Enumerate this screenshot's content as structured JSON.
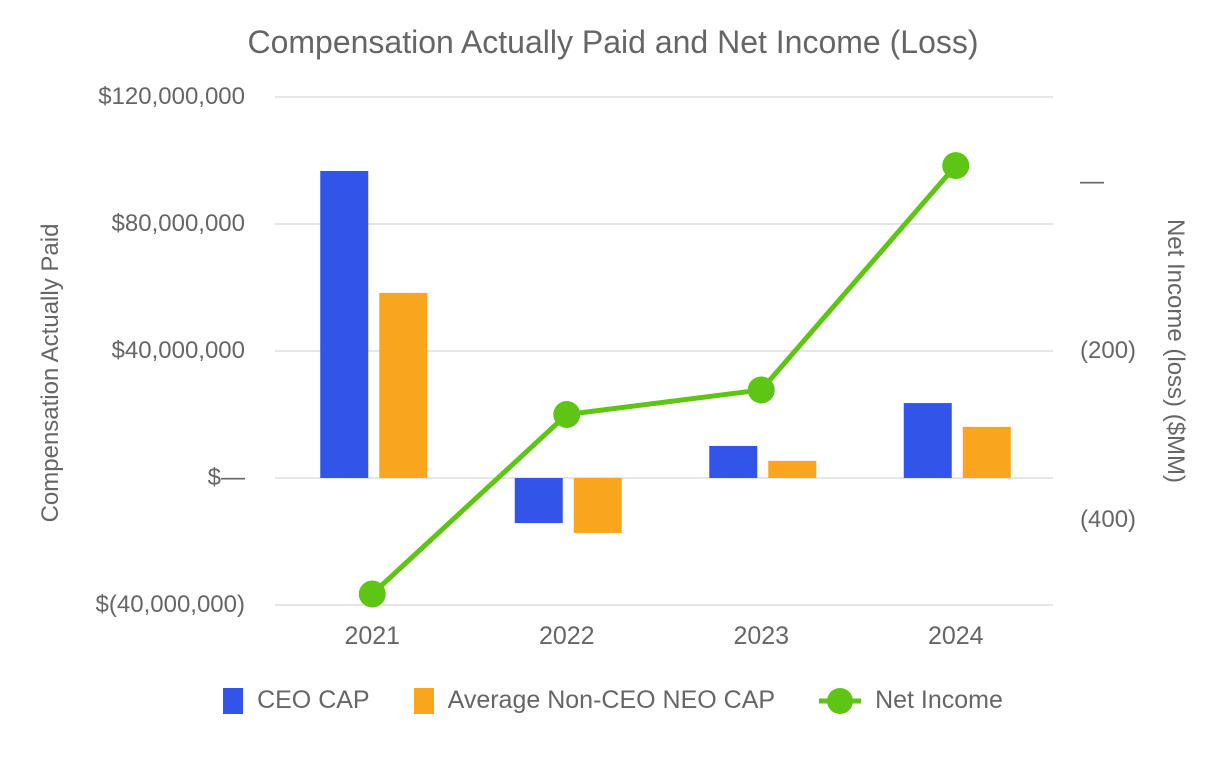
{
  "title": "Compensation Actually Paid and Net Income (Loss)",
  "colors": {
    "ceo_cap_blue": "#3354E8",
    "neo_cap_orange": "#F9A51D",
    "net_income_green": "#5EC514",
    "grid": "#E6E6E6",
    "text": "#666666",
    "background": "#FFFFFF"
  },
  "chart_data": {
    "type": "bar",
    "subtype": "grouped bars with overlaid line (dual axis)",
    "title": "Compensation Actually Paid and Net Income (Loss)",
    "categories": [
      "2021",
      "2022",
      "2023",
      "2024"
    ],
    "series": [
      {
        "name": "CEO CAP",
        "type": "bar",
        "axis": "left",
        "color": "#3354E8",
        "values": [
          96700000,
          -14200000,
          10100000,
          23600000
        ]
      },
      {
        "name": "Average Non-CEO NEO CAP",
        "type": "bar",
        "axis": "left",
        "color": "#F9A51D",
        "values": [
          58300000,
          -17300000,
          5400000,
          16100000
        ]
      },
      {
        "name": "Net Income",
        "type": "line",
        "axis": "right",
        "color": "#5EC514",
        "values": [
          -487,
          -275,
          -246,
          19
        ],
        "units": "$MM"
      }
    ],
    "left_axis": {
      "title": "Compensation Actually Paid",
      "min": -40000000,
      "max": 120000000,
      "ticks": [
        {
          "value": 120000000,
          "label": "$120,000,000"
        },
        {
          "value": 80000000,
          "label": "$80,000,000"
        },
        {
          "value": 40000000,
          "label": "$40,000,000"
        },
        {
          "value": 0,
          "label": "$—"
        },
        {
          "value": -40000000,
          "label": "$(40,000,000)"
        }
      ]
    },
    "right_axis": {
      "title": "Net Income (loss) ($MM)",
      "min": -500,
      "max": 100,
      "ticks": [
        {
          "value": 0,
          "label": "—"
        },
        {
          "value": -200,
          "label": "(200)"
        },
        {
          "value": -400,
          "label": "(400)"
        }
      ]
    },
    "grid": true,
    "legend_position": "bottom",
    "legend": [
      "CEO CAP",
      "Average Non-CEO NEO CAP",
      "Net Income"
    ]
  }
}
